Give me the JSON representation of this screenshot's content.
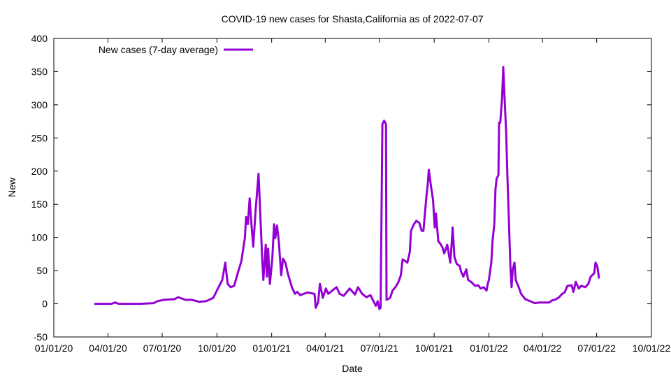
{
  "chart_data": {
    "type": "line",
    "title": "COVID-19 new cases for Shasta,California as of 2022-07-07",
    "xlabel": "Date",
    "ylabel": "New",
    "x_origin": "2020-01-01",
    "x_unit": "days since x_origin",
    "xlim": [
      0,
      1004
    ],
    "ylim": [
      -50,
      400
    ],
    "yticks": [
      -50,
      0,
      50,
      100,
      150,
      200,
      250,
      300,
      350,
      400
    ],
    "xticks": [
      {
        "day": 0,
        "label": "01/01/20"
      },
      {
        "day": 91,
        "label": "04/01/20"
      },
      {
        "day": 182,
        "label": "07/01/20"
      },
      {
        "day": 274,
        "label": "10/01/20"
      },
      {
        "day": 366,
        "label": "01/01/21"
      },
      {
        "day": 456,
        "label": "04/01/21"
      },
      {
        "day": 547,
        "label": "07/01/21"
      },
      {
        "day": 639,
        "label": "10/01/21"
      },
      {
        "day": 731,
        "label": "01/01/22"
      },
      {
        "day": 821,
        "label": "04/01/22"
      },
      {
        "day": 912,
        "label": "07/01/22"
      },
      {
        "day": 1004,
        "label": "10/01/22"
      }
    ],
    "grid": false,
    "legend_position": "top-left",
    "series": [
      {
        "name": "New cases (7-day average)",
        "color": "#9400d3",
        "x": [
          68,
          97,
          103,
          109,
          144,
          168,
          174,
          185,
          203,
          209,
          221,
          232,
          244,
          256,
          268,
          274,
          283,
          288,
          292,
          297,
          303,
          309,
          315,
          321,
          323,
          326,
          329,
          332,
          335,
          339,
          344,
          346,
          350,
          352,
          356,
          358,
          360,
          363,
          367,
          370,
          372,
          375,
          378,
          382,
          385,
          389,
          393,
          400,
          405,
          409,
          414,
          426,
          438,
          440,
          444,
          447,
          452,
          457,
          461,
          468,
          475,
          480,
          487,
          497,
          506,
          511,
          518,
          525,
          532,
          538,
          541,
          544,
          547,
          549,
          552,
          555,
          558,
          559,
          565,
          569,
          574,
          579,
          583,
          586,
          591,
          594,
          598,
          600,
          605,
          609,
          614,
          618,
          621,
          626,
          628,
          630,
          634,
          637,
          640,
          642,
          646,
          649,
          653,
          656,
          661,
          666,
          668,
          670,
          673,
          677,
          682,
          684,
          688,
          693,
          696,
          701,
          708,
          713,
          717,
          722,
          727,
          729,
          731,
          735,
          737,
          740,
          742,
          744,
          747,
          748,
          750,
          753,
          755,
          757,
          760,
          762,
          764,
          767,
          769,
          771,
          774,
          776,
          781,
          785,
          792,
          800,
          808,
          816,
          825,
          832,
          837,
          844,
          849,
          854,
          858,
          863,
          870,
          873,
          877,
          882,
          886,
          893,
          898,
          902,
          908,
          910,
          913,
          916
        ],
        "y": [
          0,
          0,
          2,
          0,
          0,
          1,
          4,
          6,
          7,
          10,
          6,
          6,
          3,
          4,
          9,
          20,
          36,
          62,
          30,
          25,
          27,
          46,
          64,
          100,
          131,
          120,
          159,
          120,
          86,
          141,
          196,
          152,
          68,
          36,
          89,
          41,
          83,
          30,
          67,
          120,
          99,
          118,
          94,
          43,
          68,
          62,
          46,
          25,
          15,
          18,
          13,
          17,
          15,
          -6,
          2,
          30,
          9,
          23,
          15,
          20,
          25,
          15,
          12,
          23,
          14,
          25,
          15,
          10,
          13,
          2,
          -3,
          4,
          -8,
          -6,
          271,
          276,
          271,
          6,
          9,
          20,
          25,
          33,
          43,
          67,
          64,
          62,
          78,
          110,
          120,
          125,
          122,
          110,
          110,
          162,
          178,
          202,
          175,
          157,
          115,
          136,
          94,
          91,
          85,
          76,
          89,
          62,
          86,
          115,
          71,
          60,
          57,
          49,
          41,
          52,
          36,
          33,
          27,
          28,
          23,
          25,
          20,
          30,
          36,
          62,
          94,
          120,
          173,
          189,
          194,
          273,
          273,
          310,
          357,
          315,
          257,
          194,
          141,
          57,
          25,
          52,
          62,
          36,
          25,
          15,
          7,
          4,
          1,
          2,
          2,
          2,
          5,
          7,
          10,
          15,
          17,
          27,
          28,
          18,
          33,
          23,
          27,
          25,
          30,
          41,
          46,
          62,
          57,
          38
        ]
      }
    ]
  }
}
